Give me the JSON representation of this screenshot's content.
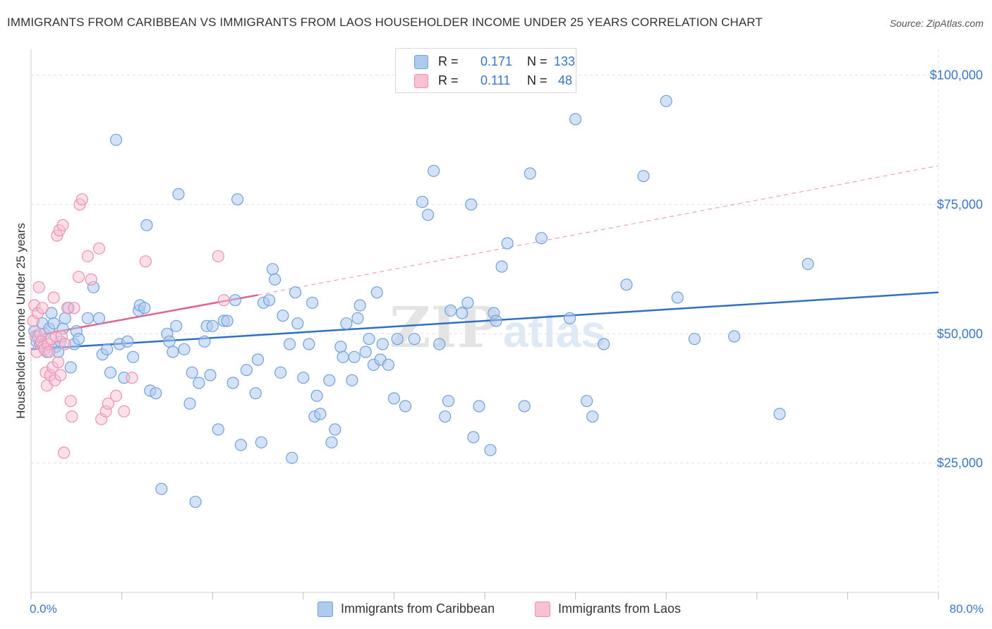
{
  "title": "IMMIGRANTS FROM CARIBBEAN VS IMMIGRANTS FROM LAOS HOUSEHOLDER INCOME UNDER 25 YEARS CORRELATION CHART",
  "source": "Source: ZipAtlas.com",
  "watermark": "ZIPatlas",
  "colors": {
    "caribbean": "#6fa0dc",
    "caribbean_fill": "#aecbef",
    "caribbean_line": "#2f6fc8",
    "laos": "#ee8fb0",
    "laos_fill": "#f7c0d3",
    "laos_line": "#e0628e",
    "tick_text": "#3a76c8",
    "grid": "#dedede"
  },
  "legend": {
    "rows": [
      {
        "r_label": "R =",
        "r_value": "0.171",
        "n_label": "N =",
        "n_value": "133"
      },
      {
        "r_label": "R =",
        "r_value": "0.111",
        "n_label": "N =",
        "n_value": "48"
      }
    ]
  },
  "chart_data": {
    "type": "scatter",
    "title": "IMMIGRANTS FROM CARIBBEAN VS IMMIGRANTS FROM LAOS HOUSEHOLDER INCOME UNDER 25 YEARS CORRELATION CHART",
    "xlabel": "",
    "ylabel": "Householder Income Under 25 years",
    "xlim": [
      0,
      80
    ],
    "ylim": [
      0,
      105000
    ],
    "x_tick_labels": [
      "0.0%",
      "80.0%"
    ],
    "y_ticks": [
      25000,
      50000,
      75000,
      100000
    ],
    "y_tick_labels": [
      "$25,000",
      "$50,000",
      "$75,000",
      "$100,000"
    ],
    "grid": true,
    "legend_placement": "top-center",
    "series": [
      {
        "name": "Immigrants from Caribbean",
        "r": 0.171,
        "n": 133,
        "trend": {
          "x": [
            0,
            80
          ],
          "y": [
            47000,
            58000
          ]
        },
        "points": [
          [
            0.3,
            50500
          ],
          [
            0.5,
            48500
          ],
          [
            0.6,
            49500
          ],
          [
            0.8,
            48000
          ],
          [
            1.0,
            52000
          ],
          [
            1.2,
            50000
          ],
          [
            1.4,
            46500
          ],
          [
            1.6,
            51000
          ],
          [
            1.8,
            54000
          ],
          [
            2.0,
            52000
          ],
          [
            2.2,
            47500
          ],
          [
            2.4,
            46500
          ],
          [
            2.6,
            48500
          ],
          [
            2.8,
            51000
          ],
          [
            3.0,
            53000
          ],
          [
            3.3,
            55000
          ],
          [
            3.5,
            43500
          ],
          [
            3.8,
            48000
          ],
          [
            4.0,
            50500
          ],
          [
            4.2,
            49000
          ],
          [
            5.0,
            53000
          ],
          [
            5.5,
            59000
          ],
          [
            6.0,
            53000
          ],
          [
            6.3,
            46000
          ],
          [
            6.7,
            47000
          ],
          [
            7.0,
            42500
          ],
          [
            7.5,
            87500
          ],
          [
            7.8,
            48000
          ],
          [
            8.2,
            41500
          ],
          [
            8.5,
            48500
          ],
          [
            9.0,
            45500
          ],
          [
            9.5,
            54500
          ],
          [
            9.6,
            55500
          ],
          [
            10.0,
            55000
          ],
          [
            10.2,
            71000
          ],
          [
            10.5,
            39000
          ],
          [
            11.0,
            38500
          ],
          [
            11.5,
            20000
          ],
          [
            12.0,
            50000
          ],
          [
            12.2,
            48500
          ],
          [
            12.5,
            46500
          ],
          [
            12.8,
            51500
          ],
          [
            13.0,
            77000
          ],
          [
            13.5,
            47000
          ],
          [
            14.0,
            36500
          ],
          [
            14.2,
            42500
          ],
          [
            14.5,
            17500
          ],
          [
            14.8,
            40500
          ],
          [
            15.3,
            48500
          ],
          [
            15.5,
            51500
          ],
          [
            15.8,
            42000
          ],
          [
            16.0,
            51500
          ],
          [
            16.5,
            31500
          ],
          [
            17.0,
            52500
          ],
          [
            17.3,
            52500
          ],
          [
            17.8,
            40500
          ],
          [
            18.0,
            56500
          ],
          [
            18.2,
            76000
          ],
          [
            18.5,
            28500
          ],
          [
            19.0,
            43000
          ],
          [
            19.8,
            38500
          ],
          [
            20.0,
            45000
          ],
          [
            20.3,
            29000
          ],
          [
            20.5,
            56000
          ],
          [
            21.0,
            56500
          ],
          [
            21.3,
            62500
          ],
          [
            21.5,
            60500
          ],
          [
            22.0,
            42500
          ],
          [
            22.2,
            53500
          ],
          [
            22.8,
            48000
          ],
          [
            23.0,
            26000
          ],
          [
            23.3,
            58000
          ],
          [
            23.5,
            52000
          ],
          [
            24.0,
            41500
          ],
          [
            24.5,
            48000
          ],
          [
            24.8,
            56000
          ],
          [
            25.0,
            34000
          ],
          [
            25.2,
            38000
          ],
          [
            25.5,
            34500
          ],
          [
            26.3,
            41000
          ],
          [
            26.5,
            29000
          ],
          [
            26.8,
            31500
          ],
          [
            27.3,
            47500
          ],
          [
            27.5,
            45500
          ],
          [
            27.8,
            52000
          ],
          [
            28.3,
            41000
          ],
          [
            28.5,
            45500
          ],
          [
            28.8,
            53000
          ],
          [
            29.0,
            55500
          ],
          [
            29.5,
            46500
          ],
          [
            29.8,
            49000
          ],
          [
            30.2,
            44000
          ],
          [
            30.5,
            58000
          ],
          [
            30.8,
            45000
          ],
          [
            31.0,
            48000
          ],
          [
            31.5,
            44000
          ],
          [
            32.0,
            37500
          ],
          [
            32.3,
            49000
          ],
          [
            33.0,
            36000
          ],
          [
            33.8,
            49000
          ],
          [
            34.5,
            75500
          ],
          [
            35.0,
            73000
          ],
          [
            35.5,
            81500
          ],
          [
            36.0,
            48000
          ],
          [
            36.5,
            34000
          ],
          [
            36.8,
            37000
          ],
          [
            37.0,
            54500
          ],
          [
            38.0,
            54000
          ],
          [
            38.5,
            56000
          ],
          [
            38.8,
            75000
          ],
          [
            39.0,
            30000
          ],
          [
            39.5,
            36000
          ],
          [
            40.5,
            27500
          ],
          [
            40.8,
            54000
          ],
          [
            41.0,
            52500
          ],
          [
            41.5,
            63000
          ],
          [
            42.0,
            67500
          ],
          [
            43.5,
            36000
          ],
          [
            44.0,
            81000
          ],
          [
            45.0,
            68500
          ],
          [
            47.5,
            53000
          ],
          [
            48.0,
            91500
          ],
          [
            49.0,
            37000
          ],
          [
            49.5,
            34000
          ],
          [
            50.5,
            48000
          ],
          [
            52.5,
            59500
          ],
          [
            54.0,
            80500
          ],
          [
            56.0,
            95000
          ],
          [
            57.0,
            57000
          ],
          [
            58.5,
            49000
          ],
          [
            62.0,
            49500
          ],
          [
            66.0,
            34500
          ],
          [
            68.5,
            63500
          ]
        ]
      },
      {
        "name": "Immigrants from Laos",
        "r": 0.111,
        "n": 48,
        "trend": {
          "x": [
            0,
            20
          ],
          "y": [
            49500,
            57500
          ]
        },
        "trend_extension": {
          "x": [
            20,
            80
          ],
          "y": [
            57500,
            82500
          ]
        },
        "points": [
          [
            0.2,
            52500
          ],
          [
            0.3,
            55500
          ],
          [
            0.4,
            49500
          ],
          [
            0.5,
            46500
          ],
          [
            0.6,
            54000
          ],
          [
            0.7,
            59000
          ],
          [
            0.8,
            50000
          ],
          [
            0.9,
            48500
          ],
          [
            1.0,
            55000
          ],
          [
            1.1,
            47500
          ],
          [
            1.2,
            47000
          ],
          [
            1.3,
            42500
          ],
          [
            1.4,
            40000
          ],
          [
            1.5,
            48000
          ],
          [
            1.6,
            46500
          ],
          [
            1.7,
            42000
          ],
          [
            1.8,
            49000
          ],
          [
            1.9,
            43500
          ],
          [
            2.0,
            57000
          ],
          [
            2.1,
            41000
          ],
          [
            2.2,
            49500
          ],
          [
            2.3,
            69000
          ],
          [
            2.4,
            44500
          ],
          [
            2.5,
            70000
          ],
          [
            2.6,
            42000
          ],
          [
            2.7,
            49500
          ],
          [
            2.8,
            71000
          ],
          [
            2.9,
            27000
          ],
          [
            3.0,
            48000
          ],
          [
            3.2,
            55000
          ],
          [
            3.5,
            37000
          ],
          [
            3.6,
            34000
          ],
          [
            3.8,
            55000
          ],
          [
            4.2,
            61000
          ],
          [
            4.3,
            75000
          ],
          [
            4.5,
            76000
          ],
          [
            5.0,
            65000
          ],
          [
            5.3,
            60500
          ],
          [
            6.0,
            66500
          ],
          [
            6.2,
            33500
          ],
          [
            6.6,
            35000
          ],
          [
            6.8,
            36500
          ],
          [
            7.5,
            38000
          ],
          [
            8.2,
            35000
          ],
          [
            8.9,
            41500
          ],
          [
            10.1,
            64000
          ],
          [
            16.5,
            65000
          ],
          [
            17.0,
            56500
          ]
        ]
      }
    ]
  },
  "bottom_legend": [
    {
      "label": "Immigrants from Caribbean"
    },
    {
      "label": "Immigrants from Laos"
    }
  ]
}
